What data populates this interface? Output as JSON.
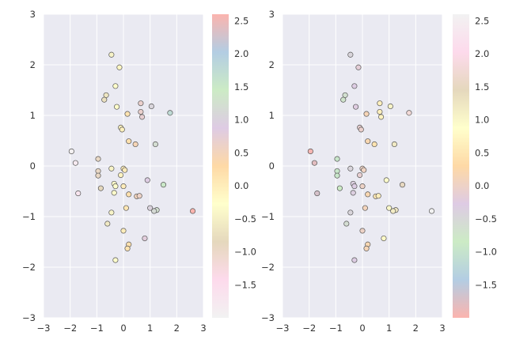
{
  "chart_data": [
    {
      "type": "scatter",
      "title": "",
      "xlabel": "",
      "ylabel": "",
      "xlim": [
        -3,
        3
      ],
      "ylim": [
        -3,
        3
      ],
      "grid": true,
      "x_ticks": [
        "−3",
        "−2",
        "−1",
        "0",
        "1",
        "2",
        "3"
      ],
      "y_ticks": [
        "3",
        "2",
        "1",
        "0",
        "−1",
        "−2",
        "−3"
      ],
      "colormap": "Pastel1 (reversed)",
      "colorbar_range": [
        -2.0,
        2.6
      ],
      "colorbar_ticks": [
        "2.5",
        "2.0",
        "1.5",
        "1.0",
        "0.5",
        "0.0",
        "−0.5",
        "−1.0",
        "−1.5"
      ],
      "color_values": "x",
      "points": [
        {
          "x": -0.45,
          "y": 2.2
        },
        {
          "x": -0.15,
          "y": 1.95
        },
        {
          "x": -0.3,
          "y": 1.58
        },
        {
          "x": -0.65,
          "y": 1.4
        },
        {
          "x": -0.72,
          "y": 1.31
        },
        {
          "x": -0.25,
          "y": 1.17
        },
        {
          "x": 0.65,
          "y": 1.24
        },
        {
          "x": 1.05,
          "y": 1.18
        },
        {
          "x": 0.65,
          "y": 1.07
        },
        {
          "x": 0.15,
          "y": 1.03
        },
        {
          "x": 0.7,
          "y": 0.97
        },
        {
          "x": 1.75,
          "y": 1.05
        },
        {
          "x": -0.1,
          "y": 0.76
        },
        {
          "x": -0.05,
          "y": 0.72
        },
        {
          "x": 0.2,
          "y": 0.49
        },
        {
          "x": 0.45,
          "y": 0.43
        },
        {
          "x": 1.2,
          "y": 0.43
        },
        {
          "x": -1.95,
          "y": 0.29
        },
        {
          "x": -1.8,
          "y": 0.06
        },
        {
          "x": -0.95,
          "y": 0.14
        },
        {
          "x": -0.95,
          "y": -0.1
        },
        {
          "x": -0.45,
          "y": -0.05
        },
        {
          "x": 0.0,
          "y": -0.05
        },
        {
          "x": 0.05,
          "y": -0.08
        },
        {
          "x": -0.95,
          "y": -0.19
        },
        {
          "x": -0.1,
          "y": -0.18
        },
        {
          "x": -0.35,
          "y": -0.35
        },
        {
          "x": -0.3,
          "y": -0.4
        },
        {
          "x": 0.0,
          "y": -0.4
        },
        {
          "x": 0.9,
          "y": -0.28
        },
        {
          "x": 1.5,
          "y": -0.37
        },
        {
          "x": -0.85,
          "y": -0.44
        },
        {
          "x": -0.35,
          "y": -0.53
        },
        {
          "x": 0.2,
          "y": -0.56
        },
        {
          "x": 0.5,
          "y": -0.6
        },
        {
          "x": 0.6,
          "y": -0.59
        },
        {
          "x": -1.7,
          "y": -0.54
        },
        {
          "x": 0.1,
          "y": -0.83
        },
        {
          "x": 1.0,
          "y": -0.83
        },
        {
          "x": 1.25,
          "y": -0.87
        },
        {
          "x": 1.15,
          "y": -0.89
        },
        {
          "x": 2.6,
          "y": -0.89
        },
        {
          "x": -0.45,
          "y": -0.92
        },
        {
          "x": -0.6,
          "y": -1.14
        },
        {
          "x": 0.0,
          "y": -1.28
        },
        {
          "x": 0.8,
          "y": -1.43
        },
        {
          "x": 0.2,
          "y": -1.55
        },
        {
          "x": 0.15,
          "y": -1.63
        },
        {
          "x": -0.3,
          "y": -1.86
        }
      ]
    },
    {
      "type": "scatter",
      "title": "",
      "xlabel": "",
      "ylabel": "",
      "xlim": [
        -3,
        3
      ],
      "ylim": [
        -3,
        3
      ],
      "grid": true,
      "x_ticks": [
        "−3",
        "−2",
        "−1",
        "0",
        "1",
        "2",
        "3"
      ],
      "y_ticks": [
        "3",
        "2",
        "1",
        "0",
        "−1",
        "−2",
        "−3"
      ],
      "colormap": "Pastel1",
      "colorbar_range": [
        -2.0,
        2.6
      ],
      "colorbar_ticks": [
        "2.5",
        "2.0",
        "1.5",
        "1.0",
        "0.5",
        "0.0",
        "−0.5",
        "−1.0",
        "−1.5"
      ],
      "color_values": "x",
      "points": "same as chart 0"
    }
  ],
  "palette": {
    "background": "#ffffff",
    "axes_face": "#eaeaf2",
    "grid": "#ffffff",
    "marker_edge": "#555555",
    "text": "#333333",
    "pastel1": [
      "#fbb4ae",
      "#b3cde3",
      "#ccebc5",
      "#decbe4",
      "#fed9a6",
      "#ffffcc",
      "#e5d8bd",
      "#fddaec",
      "#f2f2f2"
    ]
  }
}
